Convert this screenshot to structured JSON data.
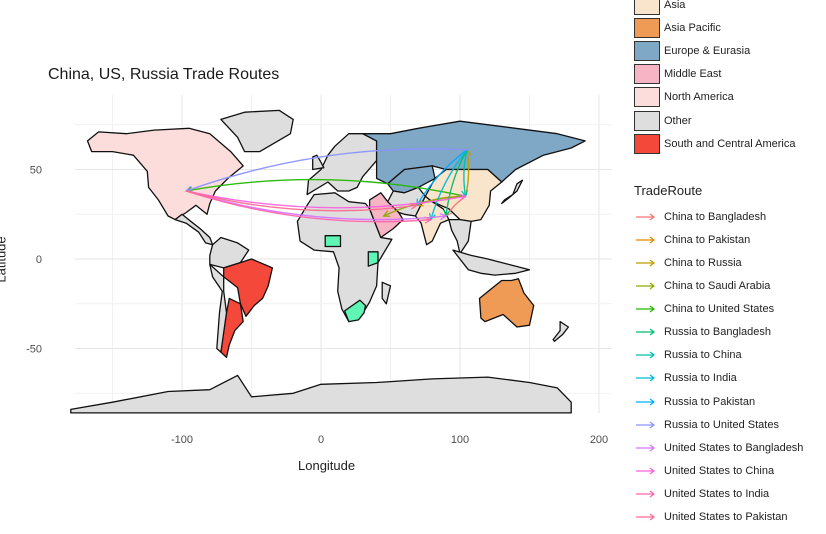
{
  "title": "China, US, Russia Trade Routes",
  "xlabel": "Longitude",
  "ylabel": "Latitude",
  "x_ticks": [
    "-100",
    "0",
    "100",
    "200"
  ],
  "y_ticks": [
    "50",
    "0",
    "-50"
  ],
  "region_legend": [
    {
      "label": "Asia",
      "color": "#f9e4cc"
    },
    {
      "label": "Asia Pacific",
      "color": "#ef9a55"
    },
    {
      "label": "Europe & Eurasia",
      "color": "#7fa7c6"
    },
    {
      "label": "Middle East",
      "color": "#f7b4c4"
    },
    {
      "label": "North America",
      "color": "#fddcdc"
    },
    {
      "label": "Other",
      "color": "#dedede"
    },
    {
      "label": "South and Central America",
      "color": "#f4483a"
    }
  ],
  "route_legend_title": "TradeRoute",
  "route_legend": [
    {
      "label": "China to Bangladesh",
      "color": "#f8766d"
    },
    {
      "label": "China to Pakistan",
      "color": "#e18a00"
    },
    {
      "label": "China to Russia",
      "color": "#be9c00"
    },
    {
      "label": "China to Saudi Arabia",
      "color": "#8cab00"
    },
    {
      "label": "China to United States",
      "color": "#24b700"
    },
    {
      "label": "Russia to Bangladesh",
      "color": "#00be70"
    },
    {
      "label": "Russia to China",
      "color": "#00c1ab"
    },
    {
      "label": "Russia to India",
      "color": "#00bbda"
    },
    {
      "label": "Russia to Pakistan",
      "color": "#00acfc"
    },
    {
      "label": "Russia to United States",
      "color": "#8b93ff"
    },
    {
      "label": "United States to Bangladesh",
      "color": "#d575fe"
    },
    {
      "label": "United States to China",
      "color": "#f962dd"
    },
    {
      "label": "United States to India",
      "color": "#ff65ac"
    },
    {
      "label": "United States to Pakistan",
      "color": "#ff6c91"
    }
  ],
  "map": {
    "xlim": [
      -180,
      200
    ],
    "ylim": [
      -90,
      90
    ]
  },
  "nodes": {
    "United States": [
      -97,
      38
    ],
    "China": [
      104,
      35
    ],
    "Russia": [
      105,
      61
    ],
    "Pakistan": [
      69,
      30
    ],
    "India": [
      79,
      22
    ],
    "Bangladesh": [
      90,
      24
    ],
    "Saudi Arabia": [
      45,
      24
    ]
  },
  "routes": [
    {
      "from": "China",
      "to": "Bangladesh"
    },
    {
      "from": "China",
      "to": "Pakistan"
    },
    {
      "from": "China",
      "to": "Russia"
    },
    {
      "from": "China",
      "to": "Saudi Arabia"
    },
    {
      "from": "China",
      "to": "United States"
    },
    {
      "from": "Russia",
      "to": "Bangladesh"
    },
    {
      "from": "Russia",
      "to": "China"
    },
    {
      "from": "Russia",
      "to": "India"
    },
    {
      "from": "Russia",
      "to": "Pakistan"
    },
    {
      "from": "Russia",
      "to": "United States"
    },
    {
      "from": "United States",
      "to": "Bangladesh"
    },
    {
      "from": "United States",
      "to": "China"
    },
    {
      "from": "United States",
      "to": "India"
    },
    {
      "from": "United States",
      "to": "Pakistan"
    }
  ]
}
